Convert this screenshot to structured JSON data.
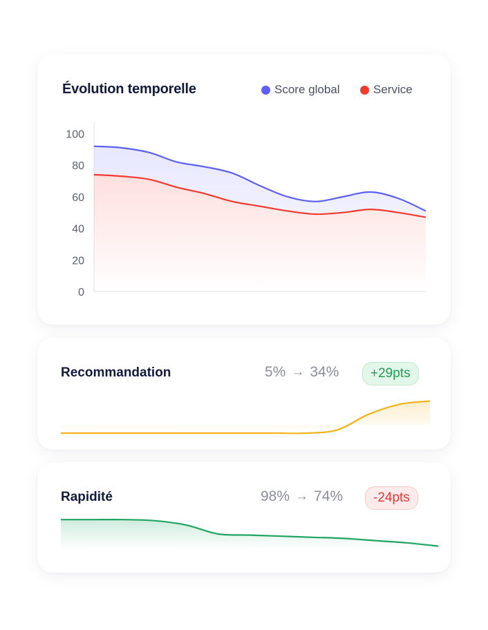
{
  "main_card": {
    "title": "Évolution temporelle",
    "legend": [
      {
        "label": "Score global",
        "color": "#5b5ff5"
      },
      {
        "label": "Service",
        "color": "#f23a2f"
      }
    ]
  },
  "chart_data": [
    {
      "type": "area",
      "title": "Évolution temporelle",
      "xlabel": "",
      "ylabel": "",
      "ylim": [
        0,
        105
      ],
      "yticks": [
        0,
        20,
        40,
        60,
        80,
        100
      ],
      "x": [
        0,
        1,
        2,
        3,
        4,
        5,
        6,
        7,
        8,
        9,
        10,
        11,
        12
      ],
      "series": [
        {
          "name": "Score global",
          "color": "#5b5ff5",
          "values": [
            92,
            91,
            88,
            82,
            79,
            75,
            67,
            60,
            57,
            60,
            63,
            59,
            51
          ]
        },
        {
          "name": "Service",
          "color": "#f23a2f",
          "values": [
            74,
            73,
            71,
            66,
            62,
            57,
            54,
            51,
            49,
            50,
            52,
            50,
            47
          ]
        }
      ],
      "grid": false
    },
    {
      "type": "area",
      "title": "Recommandation",
      "start": "5%",
      "end": "34%",
      "delta": "+29pts",
      "color": "#f5b21a",
      "ylim": [
        0,
        40
      ],
      "x": [
        0,
        1,
        2,
        3,
        4,
        5,
        6,
        7,
        8,
        9,
        10,
        11,
        12
      ],
      "series": [
        {
          "values": [
            5,
            5,
            5,
            5,
            5,
            5,
            5,
            5,
            5,
            8,
            22,
            31,
            34
          ]
        }
      ]
    },
    {
      "type": "area",
      "title": "Rapidité",
      "start": "98%",
      "end": "74%",
      "delta": "-24pts",
      "color": "#1fa463",
      "ylim": [
        50,
        100
      ],
      "x": [
        0,
        1,
        2,
        3,
        4,
        5,
        6,
        7,
        8,
        9,
        10,
        11,
        12
      ],
      "series": [
        {
          "values": [
            98,
            98,
            98,
            97,
            93,
            85,
            84,
            83,
            82,
            81,
            79,
            77,
            74
          ]
        }
      ]
    }
  ],
  "reco_card": {
    "title": "Recommandation",
    "from": "5%",
    "to": "34%",
    "delta": "+29pts",
    "arrow": "→"
  },
  "rapid_card": {
    "title": "Rapidité",
    "from": "98%",
    "to": "74%",
    "delta": "-24pts",
    "arrow": "→"
  }
}
